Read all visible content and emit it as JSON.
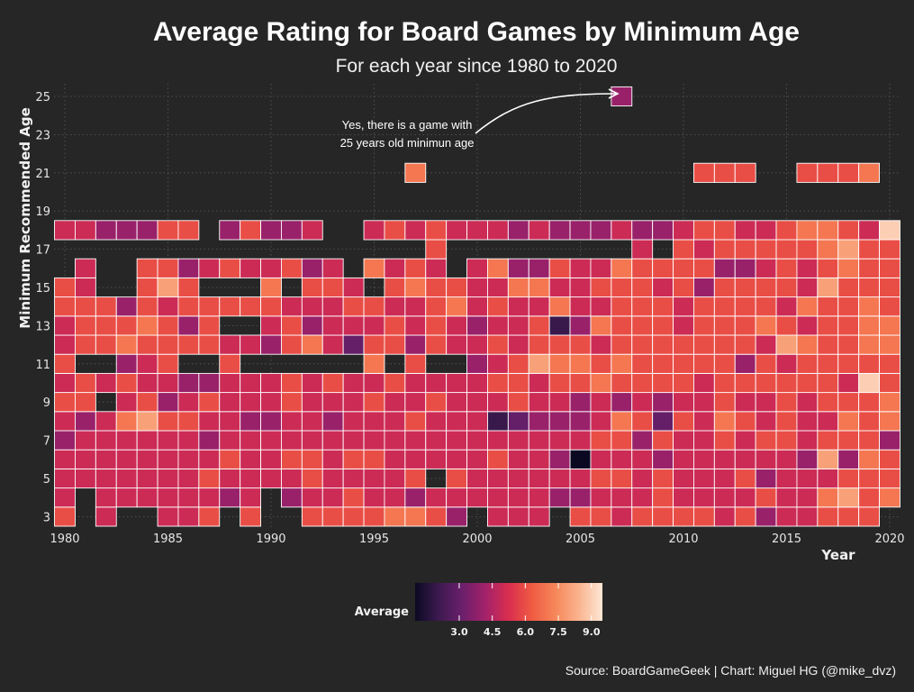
{
  "chart_data": {
    "type": "heatmap",
    "title": "Average Rating for Board Games by Minimum Age",
    "subtitle": "For each year since 1980 to 2020",
    "xlabel": "Year",
    "ylabel": "Minimum Recommended Age",
    "xlim": [
      1980,
      2020
    ],
    "ylim": [
      3,
      25
    ],
    "x_ticks": [
      "1980",
      "1985",
      "1990",
      "1995",
      "2000",
      "2005",
      "2010",
      "2015",
      "2020"
    ],
    "y_ticks": [
      "3",
      "5",
      "7",
      "9",
      "11",
      "13",
      "15",
      "17",
      "19",
      "21",
      "23",
      "25"
    ],
    "grid": true,
    "colorbar": {
      "title": "Average",
      "ticks": [
        "3.0",
        "4.5",
        "6.0",
        "7.5",
        "9.0"
      ],
      "tick_values": [
        3.0,
        4.5,
        6.0,
        7.5,
        9.0
      ],
      "range": [
        1.0,
        9.5
      ],
      "palette": [
        "#0b0922",
        "#3c1a4f",
        "#6b1f6b",
        "#a3226a",
        "#d92e4f",
        "#ef5b42",
        "#f6875a",
        "#fab48f",
        "#fde7d6"
      ]
    },
    "annotation": "Yes, there is a game with 25 years old minimun age",
    "annotation_lines": [
      "Yes, there is a game with",
      "25 years old minimun age"
    ],
    "ages": [
      3,
      4,
      5,
      6,
      7,
      8,
      9,
      10,
      11,
      12,
      13,
      14,
      15,
      16,
      17,
      18,
      21,
      25
    ],
    "years_first": 1980,
    "years_last": 2020,
    "cells": [
      [
        3,
        "6 . 5 . . 5 5 6 . 6 . . 6 6 6 6 7 7 6 4 . 5 5 5 . 6 6 5 6 6 6 6 5 6 4 5 5 6 6 6 ."
      ],
      [
        4,
        "5 . 5 5 5 5 5 5 4 5 . 4 5 5 6 5 5 4 5 5 5 5 5 5 4 4 5 5 5 6 5 5 5 5 6 5 5 7 8 6 7"
      ],
      [
        5,
        "5 5 5 5 5 5 5 6 5 5 5 5 6 5 5 5 5 6 . 6 5 5 5 5 5 5 6 6 5 6 5 5 5 6 4 5 5 5 6 6 6"
      ],
      [
        6,
        "5 5 5 5 5 5 5 5 6 5 5 6 6 5 6 6 5 5 5 5 5 6 5 5 4 1 5 5 5 4 5 5 5 5 5 5 4 8 4 7 6"
      ],
      [
        7,
        "4 5 5 5 5 5 5 4 5 5 5 5 5 5 5 5 5 5 5 5 5 5 5 5 5 5 6 6 4 6 5 5 6 5 6 6 5 6 6 6 4"
      ],
      [
        8,
        "5 4 5 7 8 6 6 5 5 4 4 5 5 4 5 5 5 6 5 5 5 2 3 4 4 4 5 7 6 3 6 5 7 6 5 6 5 5 7 6 7"
      ],
      [
        9,
        "6 6 . 5 6 4 5 6 5 5 5 6 5 5 5 6 5 5 6 5 5 5 6 5 5 4 5 4 5 4 5 5 6 5 5 6 5 6 6 6 7"
      ],
      [
        10,
        "5 6 5 6 5 5 4 4 5 5 5 6 5 6 5 5 6 5 5 5 5 6 6 5 6 6 7 6 6 6 6 5 6 6 6 6 6 6 5 9 6"
      ],
      [
        11,
        "6 . . 4 5 6 . . 6 . . . . . . 7 . 6 . . 4 5 6 8 7 7 6 7 6 6 6 6 6 4 6 5 6 6 6 6 6"
      ],
      [
        12,
        "5 6 6 7 6 6 6 6 5 5 4 6 7 5 3 6 6 4 6 5 5 6 5 6 6 6 5 6 6 6 6 6 6 6 5 8 7 6 6 7 7"
      ],
      [
        13,
        "5 6 6 6 7 6 4 6 . . 5 6 4 5 5 5 6 5 6 5 4 5 5 6 2 4 7 6 6 6 5 6 6 6 7 6 5 6 6 7 7"
      ],
      [
        14,
        "6 6 6 4 6 5 6 6 6 6 6 5 5 5 6 6 5 5 6 7 5 6 5 5 7 5 5 6 6 6 5 6 6 6 6 5 7 6 6 7 6"
      ],
      [
        15,
        "6 5 . . 6 8 6 . . . 7 . 6 6 5 . 6 7 6 6 5 5 7 7 5 5 6 6 6 5 6 4 6 6 6 6 5 8 6 6 6"
      ],
      [
        16,
        ". 5 . . 6 6 4 5 6 5 5 6 4 5 . 7 5 6 5 . 5 7 4 4 6 5 5 7 6 6 6 6 4 4 5 6 5 6 7 6 6"
      ],
      [
        17,
        ". . . . . . . . . . . . . . . . . . 6 . . . . . . . . . 5 . 6 5 6 6 6 6 6 7 8 6 6"
      ],
      [
        18,
        "5 5 4 4 4 6 6 . 4 6 4 4 5 . . 5 6 5 6 5 5 5 4 5 4 4 4 5 4 4 5 6 6 5 5 6 7 7 6 5 9"
      ],
      [
        21,
        ". . . . . . . . . . . . . . . . . 7 . . . . . . . . . . . . . 6 6 6 . . 6 6 6 7 ."
      ],
      [
        25,
        ". . . . . . . . . . . . . . . . . . . . . . . . . . . 4 . . . . . . . . . . . . ."
      ]
    ]
  },
  "caption": "Source: BoardGameGeek | Chart: Miguel HG (@mike_dvz)"
}
